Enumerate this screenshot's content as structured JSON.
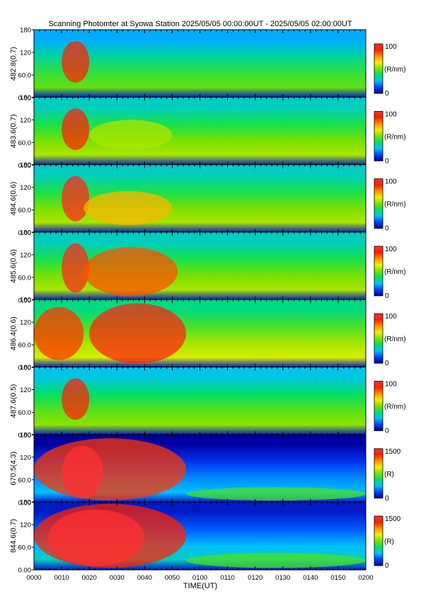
{
  "chart_data": {
    "type": "heatmap",
    "title": "Scanning Photomter at Syowa Station 2025/05/05 00:00:00UT - 2025/05/05 02:00:00UT",
    "xlabel": "TIME(UT)",
    "x_ticks": [
      "0000",
      "0010",
      "0020",
      "0030",
      "0040",
      "0050",
      "0100",
      "0110",
      "0120",
      "0130",
      "0140",
      "0150",
      "0200"
    ],
    "x_range_minutes": [
      0,
      120
    ],
    "y_ticks": [
      "0.00",
      "60.0",
      "120",
      "180"
    ],
    "y_range": [
      0,
      180
    ],
    "colorbar_colors": [
      "#0000a0",
      "#0040ff",
      "#00c0ff",
      "#00e060",
      "#7ae000",
      "#f0f000",
      "#ff9000",
      "#ff2000",
      "#ff3030"
    ],
    "panels": [
      {
        "ylabel": "482.8(0.7)",
        "cbar_max": "100",
        "cbar_min": "0",
        "cbar_unit": "(R/nm)",
        "intensity": 0.38,
        "features": [
          {
            "t0": 10,
            "t1": 20,
            "h0": 40,
            "h1": 150,
            "level": 0.9
          }
        ]
      },
      {
        "ylabel": "483.6(0.7)",
        "cbar_max": "100",
        "cbar_min": "0",
        "cbar_unit": "(R/nm)",
        "intensity": 0.45,
        "features": [
          {
            "t0": 10,
            "t1": 20,
            "h0": 40,
            "h1": 150,
            "level": 0.9
          },
          {
            "t0": 20,
            "t1": 50,
            "h0": 40,
            "h1": 120,
            "level": 0.55
          }
        ]
      },
      {
        "ylabel": "484.6(0.6)",
        "cbar_max": "100",
        "cbar_min": "0",
        "cbar_unit": "(R/nm)",
        "intensity": 0.45,
        "features": [
          {
            "t0": 10,
            "t1": 20,
            "h0": 30,
            "h1": 150,
            "level": 0.95
          },
          {
            "t0": 18,
            "t1": 50,
            "h0": 20,
            "h1": 110,
            "level": 0.7
          }
        ]
      },
      {
        "ylabel": "485.6(0.6)",
        "cbar_max": "100",
        "cbar_min": "0",
        "cbar_unit": "(R/nm)",
        "intensity": 0.45,
        "features": [
          {
            "t0": 10,
            "t1": 20,
            "h0": 20,
            "h1": 150,
            "level": 0.95
          },
          {
            "t0": 18,
            "t1": 52,
            "h0": 10,
            "h1": 140,
            "level": 0.82
          }
        ]
      },
      {
        "ylabel": "486.4(0.6)",
        "cbar_max": "100",
        "cbar_min": "0",
        "cbar_unit": "(R/nm)",
        "intensity": 0.5,
        "features": [
          {
            "t0": 0,
            "t1": 18,
            "h0": 20,
            "h1": 160,
            "level": 0.85
          },
          {
            "t0": 20,
            "t1": 55,
            "h0": 10,
            "h1": 170,
            "level": 0.92
          }
        ]
      },
      {
        "ylabel": "487.6(0.5)",
        "cbar_max": "100",
        "cbar_min": "0",
        "cbar_unit": "(R/nm)",
        "intensity": 0.42,
        "features": [
          {
            "t0": 10,
            "t1": 20,
            "h0": 40,
            "h1": 150,
            "level": 0.9
          }
        ]
      },
      {
        "ylabel": "670.5(4.3)",
        "cbar_max": "1500",
        "cbar_min": "0",
        "cbar_unit": "(R)",
        "intensity": 0.15,
        "features": [
          {
            "t0": 0,
            "t1": 55,
            "h0": 5,
            "h1": 170,
            "level": 0.85
          },
          {
            "t0": 10,
            "t1": 25,
            "h0": 10,
            "h1": 150,
            "level": 1.0
          },
          {
            "t0": 55,
            "t1": 120,
            "h0": 5,
            "h1": 40,
            "level": 0.45
          }
        ]
      },
      {
        "ylabel": "844.6(0.7)",
        "cbar_max": "1500",
        "cbar_min": "0",
        "cbar_unit": "(R)",
        "intensity": 0.2,
        "features": [
          {
            "t0": 0,
            "t1": 55,
            "h0": 5,
            "h1": 175,
            "level": 0.88
          },
          {
            "t0": 5,
            "t1": 40,
            "h0": 10,
            "h1": 160,
            "level": 1.0
          },
          {
            "t0": 55,
            "t1": 120,
            "h0": 5,
            "h1": 45,
            "level": 0.45
          }
        ]
      }
    ]
  }
}
